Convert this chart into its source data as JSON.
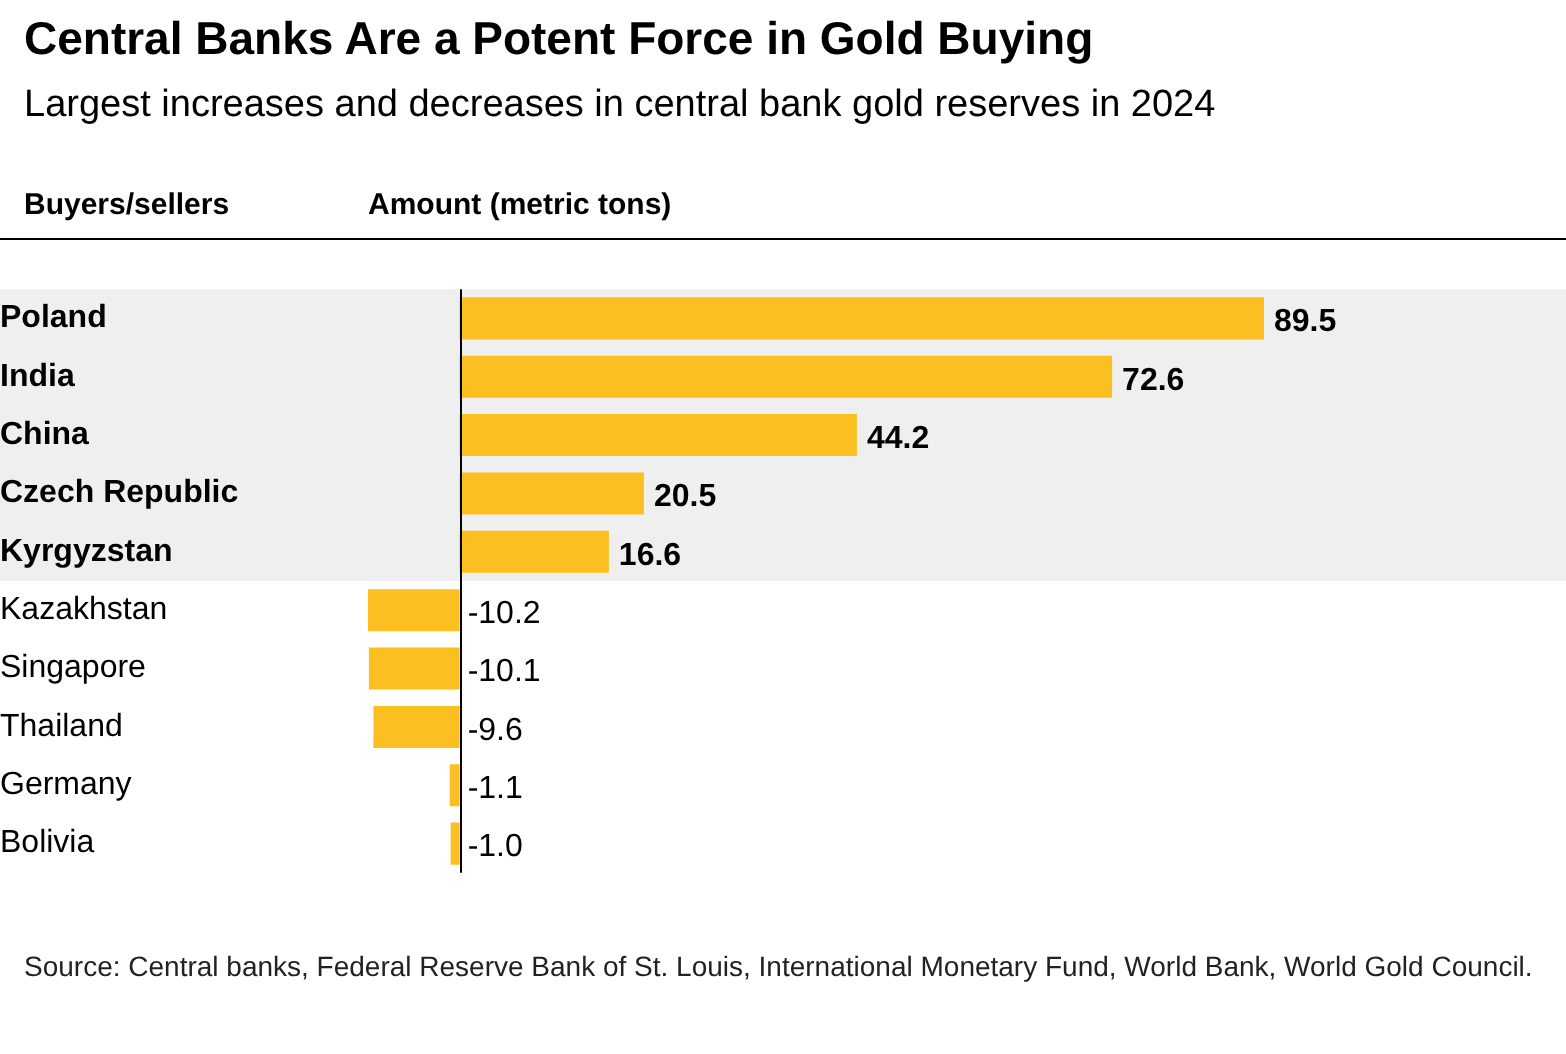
{
  "chart_data": {
    "type": "bar",
    "orientation": "horizontal",
    "title": "Central Banks Are a Potent Force in Gold Buying",
    "subtitle": "Largest increases and decreases in central bank gold reserves in 2024",
    "ylabel": "Buyers/sellers",
    "xlabel": "Amount (metric tons)",
    "categories": [
      "Poland",
      "India",
      "China",
      "Czech Republic",
      "Kyrgyzstan",
      "Kazakhstan",
      "Singapore",
      "Thailand",
      "Germany",
      "Bolivia"
    ],
    "values": [
      89.5,
      72.6,
      44.2,
      20.5,
      16.6,
      -10.2,
      -10.1,
      -9.6,
      -1.1,
      -1.0
    ],
    "value_labels": [
      "89.5",
      "72.6",
      "44.2",
      "20.5",
      "16.6",
      "-10.2",
      "-10.1",
      "-9.6",
      "-1.1",
      "-1.0"
    ],
    "color": "#fcbf22",
    "grid": false,
    "legend": false,
    "tick_labels": "y",
    "bands": [
      {
        "axis": "y",
        "from": "Poland",
        "to": "Kyrgyzstan",
        "color": "#efefef"
      }
    ],
    "annotations": [
      "Source: Central banks, Federal Reserve Bank of St. Louis, International Monetary Fund, World Bank, World Gold Council."
    ]
  }
}
